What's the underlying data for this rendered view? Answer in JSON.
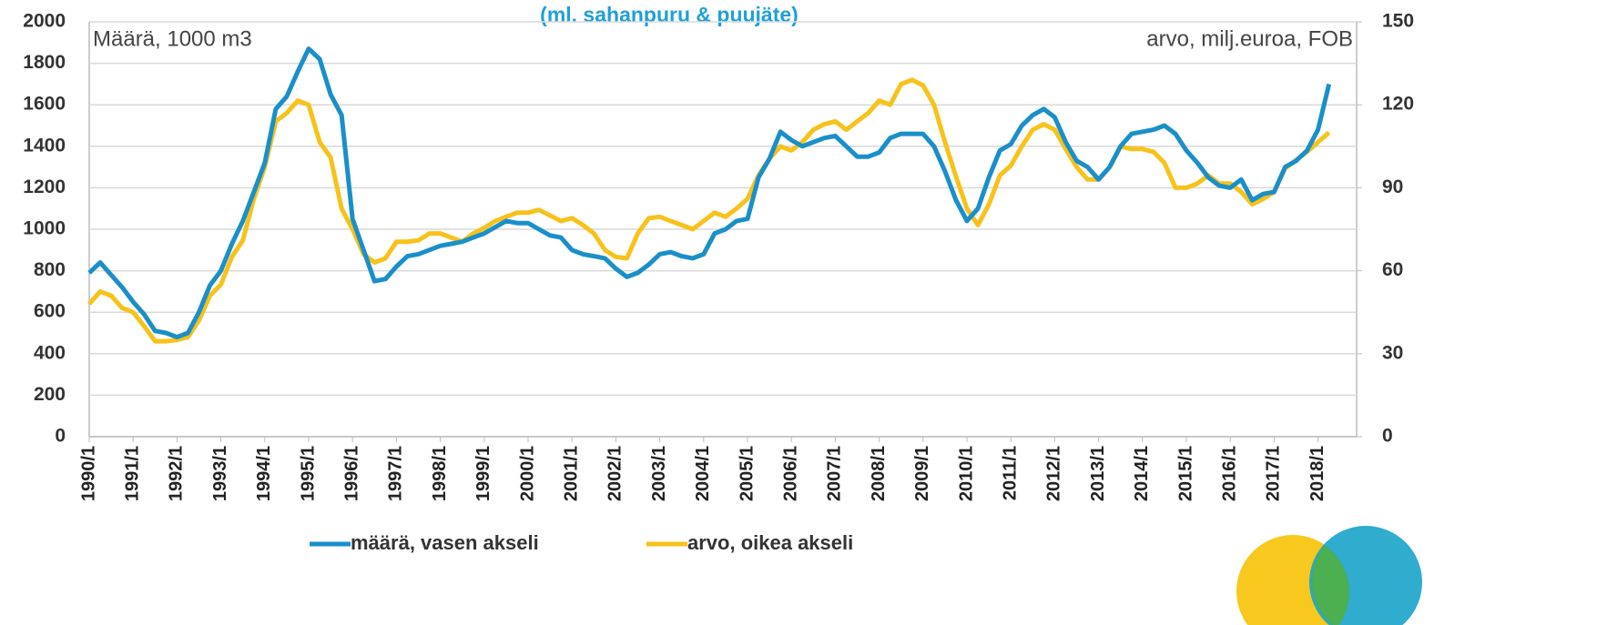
{
  "chart_data": {
    "type": "line",
    "title": "(ml. sahanpuru & puujäte)",
    "annotations": [
      "Määrä, 1000 m3",
      "arvo, milj.euroa, FOB"
    ],
    "categories": [
      "1990/1",
      null,
      null,
      null,
      "1991/1",
      null,
      null,
      null,
      "1992/1",
      null,
      null,
      null,
      "1993/1",
      null,
      null,
      null,
      "1994/1",
      null,
      null,
      null,
      "1995/1",
      null,
      null,
      null,
      "1996/1",
      null,
      null,
      null,
      "1997/1",
      null,
      null,
      null,
      "1998/1",
      null,
      null,
      null,
      "1999/1",
      null,
      null,
      null,
      "2000/1",
      null,
      null,
      null,
      "2001/1",
      null,
      null,
      null,
      "2002/1",
      null,
      null,
      null,
      "2003/1",
      null,
      null,
      null,
      "2004/1",
      null,
      null,
      null,
      "2005/1",
      null,
      null,
      null,
      "2006/1",
      null,
      null,
      null,
      "2007/1",
      null,
      null,
      null,
      "2008/1",
      null,
      null,
      null,
      "2009/1",
      null,
      null,
      null,
      "2010/1",
      null,
      null,
      null,
      "2011/1",
      null,
      null,
      null,
      "2012/1",
      null,
      null,
      null,
      "2013/1",
      null,
      null,
      null,
      "2014/1",
      null,
      null,
      null,
      "2015/1",
      null,
      null,
      null,
      "2016/1",
      null,
      null,
      null,
      "2017/1",
      null,
      null,
      null,
      "2018/1",
      null
    ],
    "series": [
      {
        "name": "määrä, vasen akseli",
        "color": "#1a8fc9",
        "values": [
          790,
          840,
          780,
          720,
          650,
          590,
          510,
          500,
          480,
          500,
          600,
          730,
          800,
          930,
          1040,
          1180,
          1320,
          1580,
          1640,
          1760,
          1870,
          1820,
          1650,
          1550,
          1050,
          900,
          750,
          760,
          820,
          870,
          880,
          900,
          920,
          930,
          940,
          960,
          980,
          1010,
          1040,
          1030,
          1030,
          1000,
          970,
          960,
          900,
          880,
          870,
          860,
          810,
          770,
          790,
          830,
          880,
          890,
          870,
          860,
          880,
          980,
          1000,
          1040,
          1050,
          1250,
          1340,
          1470,
          1430,
          1400,
          1420,
          1440,
          1450,
          1400,
          1350,
          1350,
          1370,
          1440,
          1460,
          1460,
          1460,
          1400,
          1280,
          1140,
          1040,
          1100,
          1250,
          1380,
          1410,
          1500,
          1550,
          1580,
          1540,
          1420,
          1330,
          1300,
          1240,
          1300,
          1400,
          1460,
          1470,
          1480,
          1500,
          1460,
          1380,
          1320,
          1250,
          1210,
          1200,
          1240,
          1140,
          1170,
          1180,
          1300,
          1330,
          1380,
          1480,
          1700
        ]
      },
      {
        "name": "arvo, oikea akseli",
        "color": "#f7c21b",
        "axis": "y2",
        "values": [
          48,
          52.5,
          51,
          46.5,
          45,
          40,
          34.5,
          34.5,
          35,
          36,
          42,
          51,
          55,
          65,
          71,
          86,
          97.5,
          114,
          117,
          121.5,
          120,
          106.5,
          101,
          82.5,
          75,
          66,
          63,
          64.5,
          70.5,
          70.5,
          71,
          73.5,
          73.5,
          72,
          70.5,
          73.5,
          75.5,
          78,
          79.5,
          81,
          81,
          82,
          80,
          78,
          79,
          76.5,
          73.5,
          67.5,
          65,
          64.5,
          73.5,
          79,
          79.5,
          78,
          76.5,
          75,
          78,
          81,
          79.5,
          82.5,
          86,
          94.5,
          100.5,
          105,
          103.5,
          106.5,
          111,
          113,
          114,
          111,
          114,
          117,
          121.5,
          120,
          127.5,
          129,
          127,
          120,
          106.5,
          94,
          82.5,
          76.5,
          84,
          94.5,
          98,
          105,
          111,
          113,
          111,
          104,
          97.5,
          93,
          93,
          97.5,
          105,
          104,
          104,
          103,
          99,
          90,
          90,
          91.5,
          94.5,
          91.5,
          91.5,
          88.5,
          84,
          86,
          88.5,
          97,
          100,
          103,
          106.5,
          110
        ]
      }
    ],
    "ylim": [
      0,
      2000
    ],
    "yticks": [
      0,
      200,
      400,
      600,
      800,
      1000,
      1200,
      1400,
      1600,
      1800,
      2000
    ],
    "y2lim": [
      0,
      150
    ],
    "y2ticks": [
      0,
      30,
      60,
      90,
      120,
      150
    ],
    "grid": true
  }
}
